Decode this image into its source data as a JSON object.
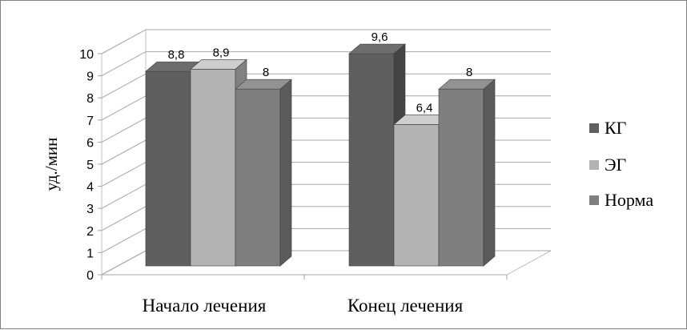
{
  "chart_data": {
    "type": "bar",
    "style": "3d-clustered-column",
    "categories": [
      "Начало  лечения",
      "Конец лечения"
    ],
    "series": [
      {
        "name": "КГ",
        "values": [
          8.8,
          9.6
        ],
        "labels": [
          "8,8",
          "9,6"
        ],
        "color": "#5f5f5f"
      },
      {
        "name": "ЭГ",
        "values": [
          8.9,
          6.4
        ],
        "labels": [
          "8,9",
          "6,4"
        ],
        "color": "#b3b3b3"
      },
      {
        "name": "Норма",
        "values": [
          8,
          8
        ],
        "labels": [
          "8",
          "8"
        ],
        "color": "#7f7f7f"
      }
    ],
    "yticks": [
      "0",
      "1",
      "2",
      "3",
      "4",
      "5",
      "6",
      "7",
      "8",
      "9",
      "10"
    ],
    "ylim": [
      0,
      10
    ],
    "ylabel": "уд./мин",
    "xlabel": "",
    "title": "",
    "grid": true,
    "legend": "right"
  }
}
